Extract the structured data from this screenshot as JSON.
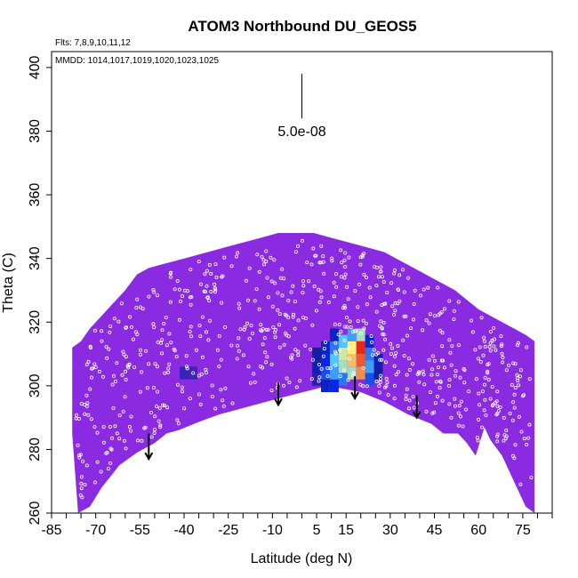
{
  "chart_data": {
    "type": "heatmap",
    "title": "ATOM3 Northbound DU_GEOS5",
    "flights_label": "Flts: 7,8,9,10,11,12",
    "dates_label": "MMDD: 1014,1017,1019,1020,1023,1025",
    "xlabel": "Latitude (deg N)",
    "ylabel": "Theta (C)",
    "xlim": [
      -85,
      85
    ],
    "ylim": [
      260,
      405
    ],
    "xticks": [
      -85,
      -70,
      -55,
      -40,
      -25,
      -10,
      5,
      15,
      30,
      45,
      60,
      75
    ],
    "yticks": [
      260,
      280,
      300,
      320,
      340,
      360,
      380,
      400
    ],
    "scale_label": "5.0e-08",
    "background_color": "#8a2be2",
    "upper_boundary": [
      [
        -78,
        312
      ],
      [
        -75,
        314
      ],
      [
        -72,
        318
      ],
      [
        -68,
        322
      ],
      [
        -64,
        326
      ],
      [
        -60,
        330
      ],
      [
        -56,
        335
      ],
      [
        -52,
        337
      ],
      [
        -48,
        338
      ],
      [
        -44,
        339
      ],
      [
        -40,
        340
      ],
      [
        -36,
        341
      ],
      [
        -32,
        342
      ],
      [
        -28,
        343
      ],
      [
        -24,
        344
      ],
      [
        -20,
        345
      ],
      [
        -16,
        346
      ],
      [
        -12,
        347
      ],
      [
        -8,
        348
      ],
      [
        4,
        348
      ],
      [
        8,
        347
      ],
      [
        12,
        346
      ],
      [
        16,
        345
      ],
      [
        20,
        344
      ],
      [
        24,
        343
      ],
      [
        28,
        342
      ],
      [
        32,
        340
      ],
      [
        36,
        338
      ],
      [
        40,
        336
      ],
      [
        44,
        334
      ],
      [
        48,
        332
      ],
      [
        52,
        330
      ],
      [
        56,
        327
      ],
      [
        60,
        324
      ],
      [
        64,
        322
      ],
      [
        68,
        320
      ],
      [
        72,
        318
      ],
      [
        76,
        316
      ],
      [
        79,
        314
      ]
    ],
    "lower_boundary": [
      [
        79,
        260
      ],
      [
        76,
        262
      ],
      [
        72,
        270
      ],
      [
        68,
        278
      ],
      [
        64,
        283
      ],
      [
        62,
        287
      ],
      [
        59,
        278
      ],
      [
        56,
        282
      ],
      [
        53,
        285
      ],
      [
        48,
        285
      ],
      [
        44,
        288
      ],
      [
        36,
        291
      ],
      [
        28,
        295
      ],
      [
        20,
        298
      ],
      [
        9,
        300
      ],
      [
        -8,
        296
      ],
      [
        -20,
        293
      ],
      [
        -28,
        291
      ],
      [
        -34,
        289
      ],
      [
        -42,
        286
      ],
      [
        -46,
        285
      ],
      [
        -50,
        282
      ],
      [
        -56,
        279
      ],
      [
        -62,
        275
      ],
      [
        -68,
        268
      ],
      [
        -72,
        262
      ],
      [
        -76,
        260
      ],
      [
        -78,
        285
      ]
    ],
    "hotspot_cells": [
      {
        "lat": 5,
        "theta": 302,
        "level": 0.15
      },
      {
        "lat": 5,
        "theta": 306,
        "level": 0.25
      },
      {
        "lat": 5,
        "theta": 310,
        "level": 0.2
      },
      {
        "lat": 8,
        "theta": 300,
        "level": 0.3
      },
      {
        "lat": 8,
        "theta": 304,
        "level": 0.45
      },
      {
        "lat": 8,
        "theta": 308,
        "level": 0.4
      },
      {
        "lat": 8,
        "theta": 312,
        "level": 0.3
      },
      {
        "lat": 11,
        "theta": 300,
        "level": 0.4
      },
      {
        "lat": 11,
        "theta": 304,
        "level": 0.55
      },
      {
        "lat": 11,
        "theta": 308,
        "level": 0.6
      },
      {
        "lat": 11,
        "theta": 312,
        "level": 0.5
      },
      {
        "lat": 11,
        "theta": 316,
        "level": 0.3
      },
      {
        "lat": 14,
        "theta": 302,
        "level": 0.5
      },
      {
        "lat": 14,
        "theta": 306,
        "level": 0.7
      },
      {
        "lat": 14,
        "theta": 310,
        "level": 0.75
      },
      {
        "lat": 14,
        "theta": 314,
        "level": 0.6
      },
      {
        "lat": 17,
        "theta": 304,
        "level": 0.7
      },
      {
        "lat": 17,
        "theta": 308,
        "level": 0.85
      },
      {
        "lat": 17,
        "theta": 312,
        "level": 0.8
      },
      {
        "lat": 17,
        "theta": 316,
        "level": 0.55
      },
      {
        "lat": 20,
        "theta": 304,
        "level": 0.9
      },
      {
        "lat": 20,
        "theta": 308,
        "level": 0.95
      },
      {
        "lat": 20,
        "theta": 312,
        "level": 1.0
      },
      {
        "lat": 20,
        "theta": 316,
        "level": 0.7
      },
      {
        "lat": 23,
        "theta": 302,
        "level": 0.45
      },
      {
        "lat": 23,
        "theta": 306,
        "level": 0.55
      },
      {
        "lat": 23,
        "theta": 310,
        "level": 0.5
      },
      {
        "lat": 23,
        "theta": 314,
        "level": 0.35
      },
      {
        "lat": 26,
        "theta": 304,
        "level": 0.2
      },
      {
        "lat": 26,
        "theta": 308,
        "level": 0.25
      },
      {
        "lat": -40,
        "theta": 304,
        "level": 0.1
      },
      {
        "lat": -37,
        "theta": 304,
        "level": 0.08
      }
    ],
    "arrows": [
      {
        "lat": -52,
        "theta_top": 285,
        "theta_bottom": 277
      },
      {
        "lat": -8,
        "theta_top": 301,
        "theta_bottom": 294
      },
      {
        "lat": 18,
        "theta_top": 303,
        "theta_bottom": 296
      },
      {
        "lat": 39,
        "theta_top": 297,
        "theta_bottom": 290
      }
    ],
    "scale_bar": {
      "lat": 0,
      "theta_top": 398,
      "theta_bottom": 384
    },
    "point_color": "#ffffff",
    "arrow_color": "#000000"
  }
}
